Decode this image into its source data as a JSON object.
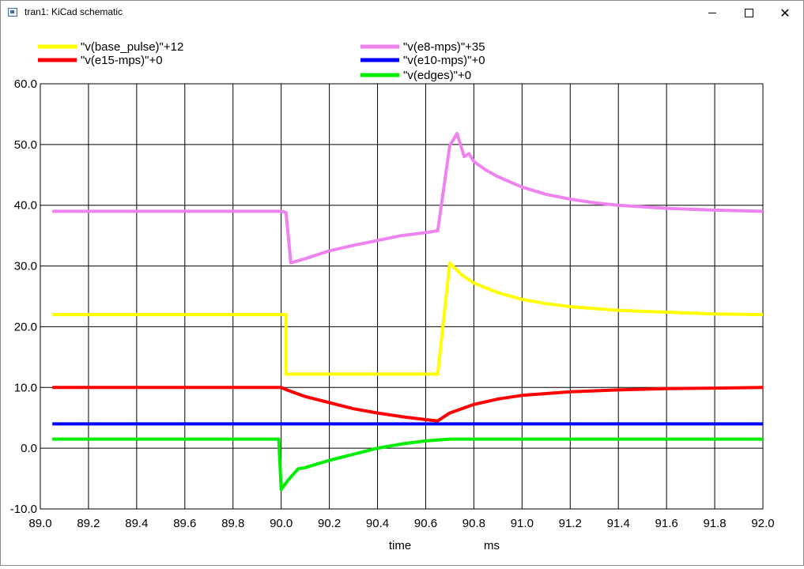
{
  "window": {
    "title": "tran1: KiCad schematic",
    "minimize_icon": "minimize-icon",
    "maximize_icon": "maximize-icon",
    "close_icon": "close-icon"
  },
  "chart_data": {
    "type": "line",
    "xlabel": "time",
    "xunit": "ms",
    "ylabel": "",
    "xlim": [
      89.0,
      92.0
    ],
    "ylim": [
      -10.0,
      60.0
    ],
    "grid": true,
    "legend_position": "top",
    "x_ticks": [
      "89.0",
      "89.2",
      "89.4",
      "89.6",
      "89.8",
      "90.0",
      "90.2",
      "90.4",
      "90.6",
      "90.8",
      "91.0",
      "91.2",
      "91.4",
      "91.6",
      "91.8",
      "92.0"
    ],
    "y_ticks": [
      "60.0",
      "50.0",
      "40.0",
      "30.0",
      "20.0",
      "10.0",
      "0.0",
      "-10.0"
    ],
    "series": [
      {
        "name": "\"v(base_pulse)\"+12",
        "color": "#ffff00",
        "x": [
          89.05,
          90.0,
          90.0,
          90.02,
          90.02,
          90.6,
          90.65,
          90.7,
          90.75,
          90.8,
          90.9,
          91.0,
          91.1,
          91.2,
          91.4,
          91.6,
          91.8,
          92.0
        ],
        "y": [
          22.0,
          22.0,
          22.0,
          22.0,
          12.2,
          12.2,
          12.2,
          30.5,
          28.5,
          27.2,
          25.6,
          24.5,
          23.8,
          23.3,
          22.7,
          22.4,
          22.1,
          22.0
        ]
      },
      {
        "name": "\"v(e8-mps)\"+35",
        "color": "#ee82ee",
        "x": [
          89.05,
          90.0,
          90.0,
          90.02,
          90.04,
          90.1,
          90.2,
          90.3,
          90.4,
          90.5,
          90.6,
          90.65,
          90.7,
          90.73,
          90.76,
          90.78,
          90.8,
          90.85,
          90.9,
          91.0,
          91.1,
          91.2,
          91.3,
          91.4,
          91.6,
          91.8,
          92.0
        ],
        "y": [
          39.0,
          39.0,
          39.0,
          38.8,
          30.5,
          31.2,
          32.5,
          33.4,
          34.2,
          35.0,
          35.5,
          35.8,
          49.8,
          51.8,
          48.0,
          48.5,
          47.2,
          45.8,
          44.7,
          43.0,
          41.8,
          41.0,
          40.4,
          40.0,
          39.5,
          39.2,
          39.0
        ]
      },
      {
        "name": "\"v(e15-mps)\"+0",
        "color": "#ff0000",
        "x": [
          89.05,
          90.0,
          90.03,
          90.1,
          90.2,
          90.3,
          90.4,
          90.5,
          90.6,
          90.65,
          90.7,
          90.8,
          90.9,
          91.0,
          91.2,
          91.4,
          91.6,
          91.8,
          92.0
        ],
        "y": [
          10.0,
          10.0,
          9.5,
          8.5,
          7.5,
          6.5,
          5.8,
          5.2,
          4.7,
          4.5,
          5.8,
          7.2,
          8.1,
          8.7,
          9.3,
          9.6,
          9.8,
          9.9,
          10.0
        ]
      },
      {
        "name": "\"v(e10-mps)\"+0",
        "color": "#0000ff",
        "x": [
          89.05,
          92.0
        ],
        "y": [
          4.0,
          4.0
        ]
      },
      {
        "name": "\"v(edges)\"+0",
        "color": "#00ee00",
        "x": [
          89.05,
          89.99,
          90.0,
          90.03,
          90.07,
          90.1,
          90.2,
          90.3,
          90.4,
          90.5,
          90.6,
          90.7,
          92.0
        ],
        "y": [
          1.5,
          1.5,
          -6.8,
          -5.2,
          -3.4,
          -3.2,
          -2.0,
          -1.0,
          0.0,
          0.7,
          1.2,
          1.5,
          1.5
        ]
      }
    ]
  }
}
